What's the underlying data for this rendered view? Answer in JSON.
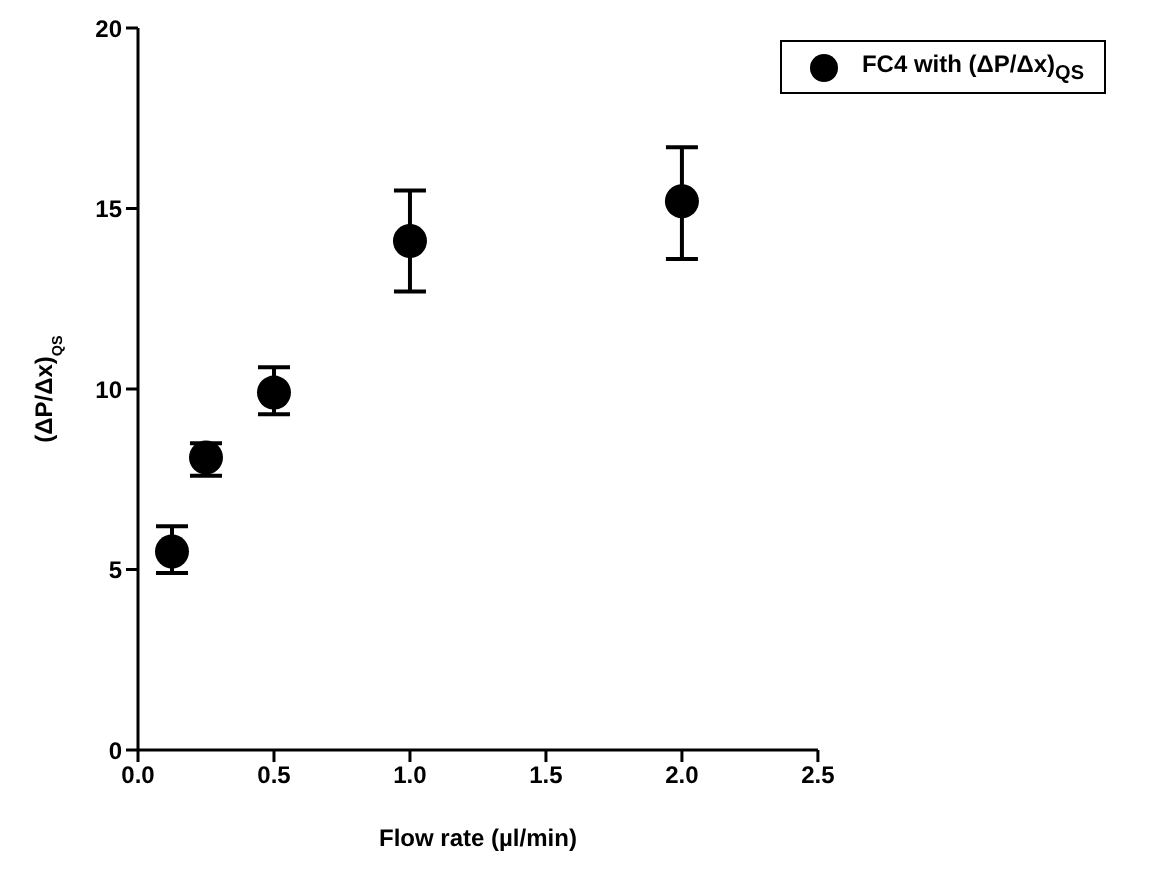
{
  "chart_data": {
    "type": "scatter",
    "xlabel": "Flow rate (µl/min)",
    "ylabel": "(ΔP/Δx)$_{QS}$",
    "x": [
      0.125,
      0.25,
      0.5,
      1.0,
      2.0
    ],
    "series": [
      {
        "name": "FC4 with (ΔP/Δx)$_{QS}$",
        "color": "#000000",
        "values": [
          5.5,
          8.1,
          9.9,
          14.1,
          15.2
        ],
        "errors": [
          [
            4.9,
            6.2
          ],
          [
            7.6,
            8.5
          ],
          [
            9.3,
            10.6
          ],
          [
            12.7,
            15.5
          ],
          [
            13.6,
            16.7
          ]
        ]
      }
    ],
    "xlim": [
      0,
      2.5
    ],
    "xticks": [
      {
        "value": 0,
        "label": "0.0"
      },
      {
        "value": 0.5,
        "label": "0.5"
      },
      {
        "value": 1,
        "label": "1.0"
      },
      {
        "value": 1.5,
        "label": "1.5"
      },
      {
        "value": 2,
        "label": "2.0"
      },
      {
        "value": 2.5,
        "label": "2.5"
      }
    ],
    "ylim": [
      0,
      20
    ],
    "yticks": [
      0,
      5,
      10,
      15,
      20
    ],
    "marker": "circle",
    "legend": "top right",
    "grid": false
  }
}
